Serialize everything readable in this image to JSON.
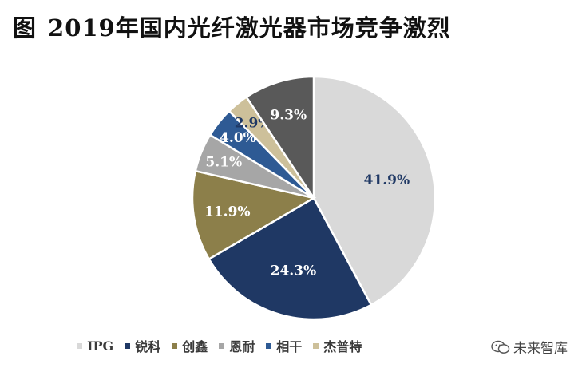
{
  "title": {
    "figure_label": "图",
    "text": "2019年国内光纤激光器市场竞争激烈"
  },
  "chart_data": {
    "type": "pie",
    "categories": [
      "IPG",
      "锐科",
      "创鑫",
      "恩耐",
      "相干",
      "杰普特",
      ""
    ],
    "values": [
      41.9,
      24.3,
      11.9,
      5.1,
      4.0,
      2.9,
      9.3
    ],
    "labels": [
      "41.9%",
      "24.3%",
      "11.9%",
      "5.1%",
      "4.0%",
      "2.9%",
      "9.3%"
    ],
    "colors": [
      "#d9d9d9",
      "#1f3864",
      "#8c7f4a",
      "#a6a6a6",
      "#2e5a94",
      "#cdc09a",
      "#595959"
    ],
    "label_colors": [
      "#1f3864",
      "#ffffff",
      "#ffffff",
      "#ffffff",
      "#ffffff",
      "#1f3864",
      "#ffffff"
    ],
    "legend_placement": "bottom"
  },
  "legend": {
    "items": [
      {
        "label": "IPG",
        "color": "#d9d9d9"
      },
      {
        "label": "锐科",
        "color": "#1f3864"
      },
      {
        "label": "创鑫",
        "color": "#8c7f4a"
      },
      {
        "label": "恩耐",
        "color": "#a6a6a6"
      },
      {
        "label": "相干",
        "color": "#2e5a94"
      },
      {
        "label": "杰普特",
        "color": "#cdc09a"
      }
    ]
  },
  "watermark": {
    "text": "未来智库",
    "icon": "wechat-icon"
  }
}
